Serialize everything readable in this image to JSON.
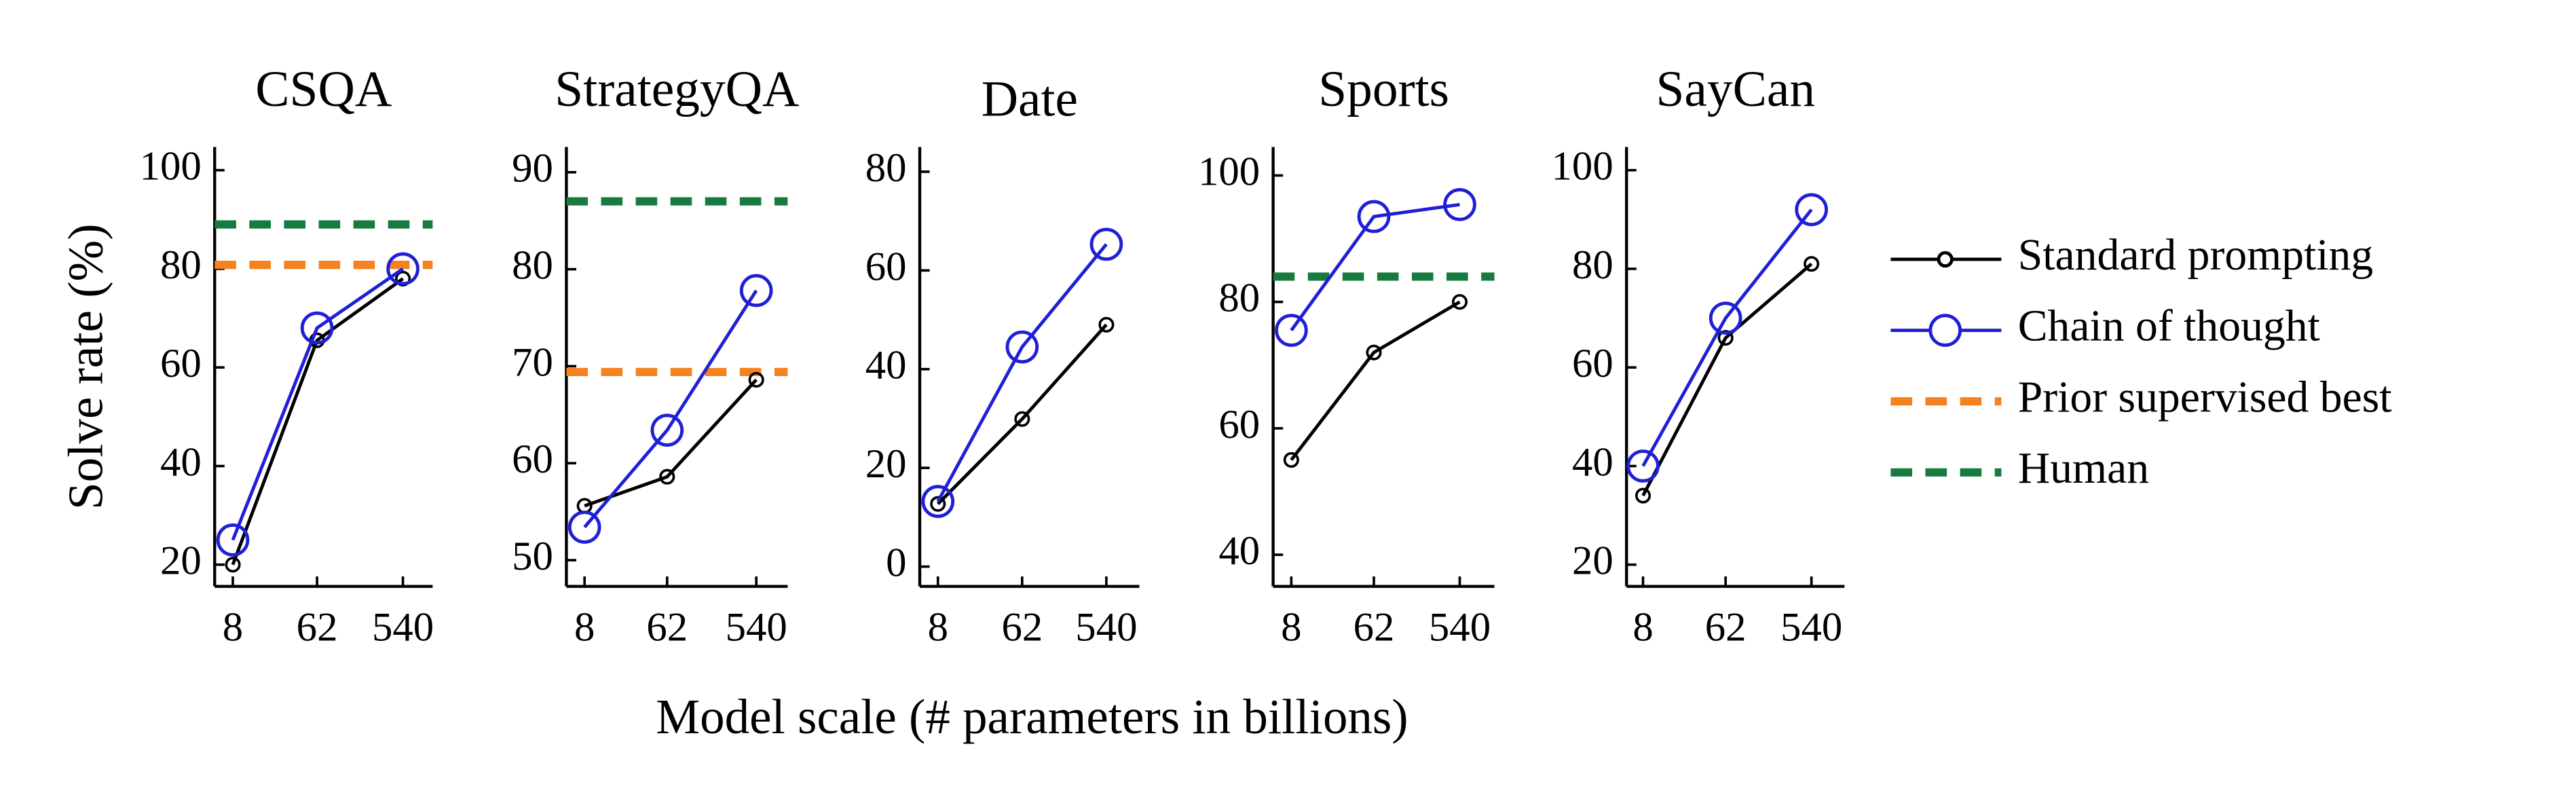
{
  "x_label": "Model scale (# parameters in billions)",
  "y_label": "Solve rate (%)",
  "chart_data": [
    {
      "type": "line",
      "title": "CSQA",
      "categories": [
        "8",
        "62",
        "540"
      ],
      "series": [
        {
          "name": "Standard prompting",
          "color": "#000000",
          "values": [
            20,
            65.5,
            78
          ]
        },
        {
          "name": "Chain of thought",
          "color": "#1f1fd6",
          "values": [
            25,
            68,
            80
          ]
        }
      ],
      "reference_lines": [
        {
          "name": "Prior supervised best",
          "color": "#f5821f",
          "value": 80.8
        },
        {
          "name": "Human",
          "color": "#177a3f",
          "value": 89
        }
      ],
      "ylim": [
        15.6,
        104.7
      ],
      "yticks": [
        20,
        40,
        60,
        80,
        100
      ]
    },
    {
      "type": "line",
      "title": "StrategyQA",
      "categories": [
        "8",
        "62",
        "540"
      ],
      "series": [
        {
          "name": "Standard prompting",
          "color": "#000000",
          "values": [
            55.6,
            58.6,
            68.6
          ]
        },
        {
          "name": "Chain of thought",
          "color": "#1f1fd6",
          "values": [
            53.4,
            63.4,
            77.8
          ]
        }
      ],
      "reference_lines": [
        {
          "name": "Prior supervised best",
          "color": "#f5821f",
          "value": 69.4
        },
        {
          "name": "Human",
          "color": "#177a3f",
          "value": 87
        }
      ],
      "ylim": [
        47.3,
        92.6
      ],
      "yticks": [
        50,
        60,
        70,
        80,
        90
      ]
    },
    {
      "type": "line",
      "title": "Date",
      "categories": [
        "8",
        "62",
        "540"
      ],
      "series": [
        {
          "name": "Standard prompting",
          "color": "#000000",
          "values": [
            12.7,
            29.9,
            49
          ]
        },
        {
          "name": "Chain of thought",
          "color": "#1f1fd6",
          "values": [
            13.2,
            44.5,
            65.3
          ]
        }
      ],
      "ylim": [
        -4,
        85
      ],
      "yticks": [
        0,
        20,
        40,
        60,
        80
      ]
    },
    {
      "type": "line",
      "title": "Sports",
      "categories": [
        "8",
        "62",
        "540"
      ],
      "series": [
        {
          "name": "Standard prompting",
          "color": "#000000",
          "values": [
            55,
            72,
            80
          ]
        },
        {
          "name": "Chain of thought",
          "color": "#1f1fd6",
          "values": [
            75.5,
            93.5,
            95.4
          ]
        }
      ],
      "reference_lines": [
        {
          "name": "Human",
          "color": "#177a3f",
          "value": 84
        }
      ],
      "ylim": [
        35,
        104.5
      ],
      "yticks": [
        40,
        60,
        80,
        100
      ]
    },
    {
      "type": "line",
      "title": "SayCan",
      "categories": [
        "8",
        "62",
        "540"
      ],
      "series": [
        {
          "name": "Standard prompting",
          "color": "#000000",
          "values": [
            34,
            66,
            81
          ]
        },
        {
          "name": "Chain of thought",
          "color": "#1f1fd6",
          "values": [
            40,
            70,
            92
          ]
        }
      ],
      "ylim": [
        15.6,
        104.7
      ],
      "yticks": [
        20,
        40,
        60,
        80,
        100
      ]
    }
  ]
}
